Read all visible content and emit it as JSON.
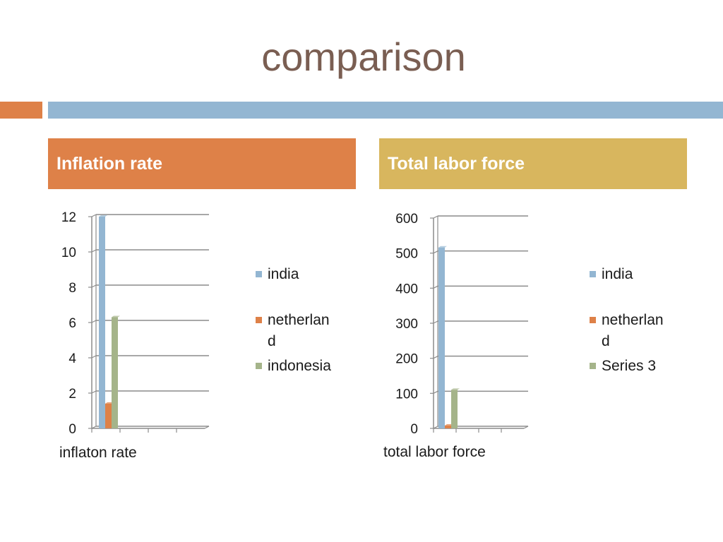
{
  "slide": {
    "title": "comparison",
    "headers": [
      {
        "text": "Inflation rate",
        "color": "#de8148"
      },
      {
        "text": "Total labor force",
        "color": "#d8b65e"
      }
    ]
  },
  "colors": {
    "series": [
      "#93b6d2",
      "#de8148",
      "#a5b48a"
    ],
    "title": "#7a5e52"
  },
  "chart_data": [
    {
      "type": "bar",
      "categories": [
        "inflaton rate"
      ],
      "series": [
        {
          "name": "india",
          "values": [
            12
          ]
        },
        {
          "name": "netherland",
          "values": [
            1.4
          ]
        },
        {
          "name": "indonesia",
          "values": [
            6.3
          ]
        }
      ],
      "yticks": [
        "0",
        "2",
        "4",
        "6",
        "8",
        "10",
        "12"
      ],
      "ylim": [
        0,
        12
      ],
      "grid": true,
      "legend": "right",
      "legend_lines": [
        [
          "india"
        ],
        [
          "netherlan",
          "d"
        ],
        [
          "indonesia"
        ]
      ]
    },
    {
      "type": "bar",
      "categories": [
        "total labor force"
      ],
      "series": [
        {
          "name": "india",
          "values": [
            516
          ]
        },
        {
          "name": "netherland",
          "values": [
            8
          ]
        },
        {
          "name": "Series 3",
          "values": [
            110
          ]
        }
      ],
      "yticks": [
        "0",
        "100",
        "200",
        "300",
        "400",
        "500",
        "600"
      ],
      "ylim": [
        0,
        600
      ],
      "grid": true,
      "legend": "right",
      "legend_lines": [
        [
          "india"
        ],
        [
          "netherlan",
          "d"
        ],
        [
          "Series 3"
        ]
      ]
    }
  ]
}
